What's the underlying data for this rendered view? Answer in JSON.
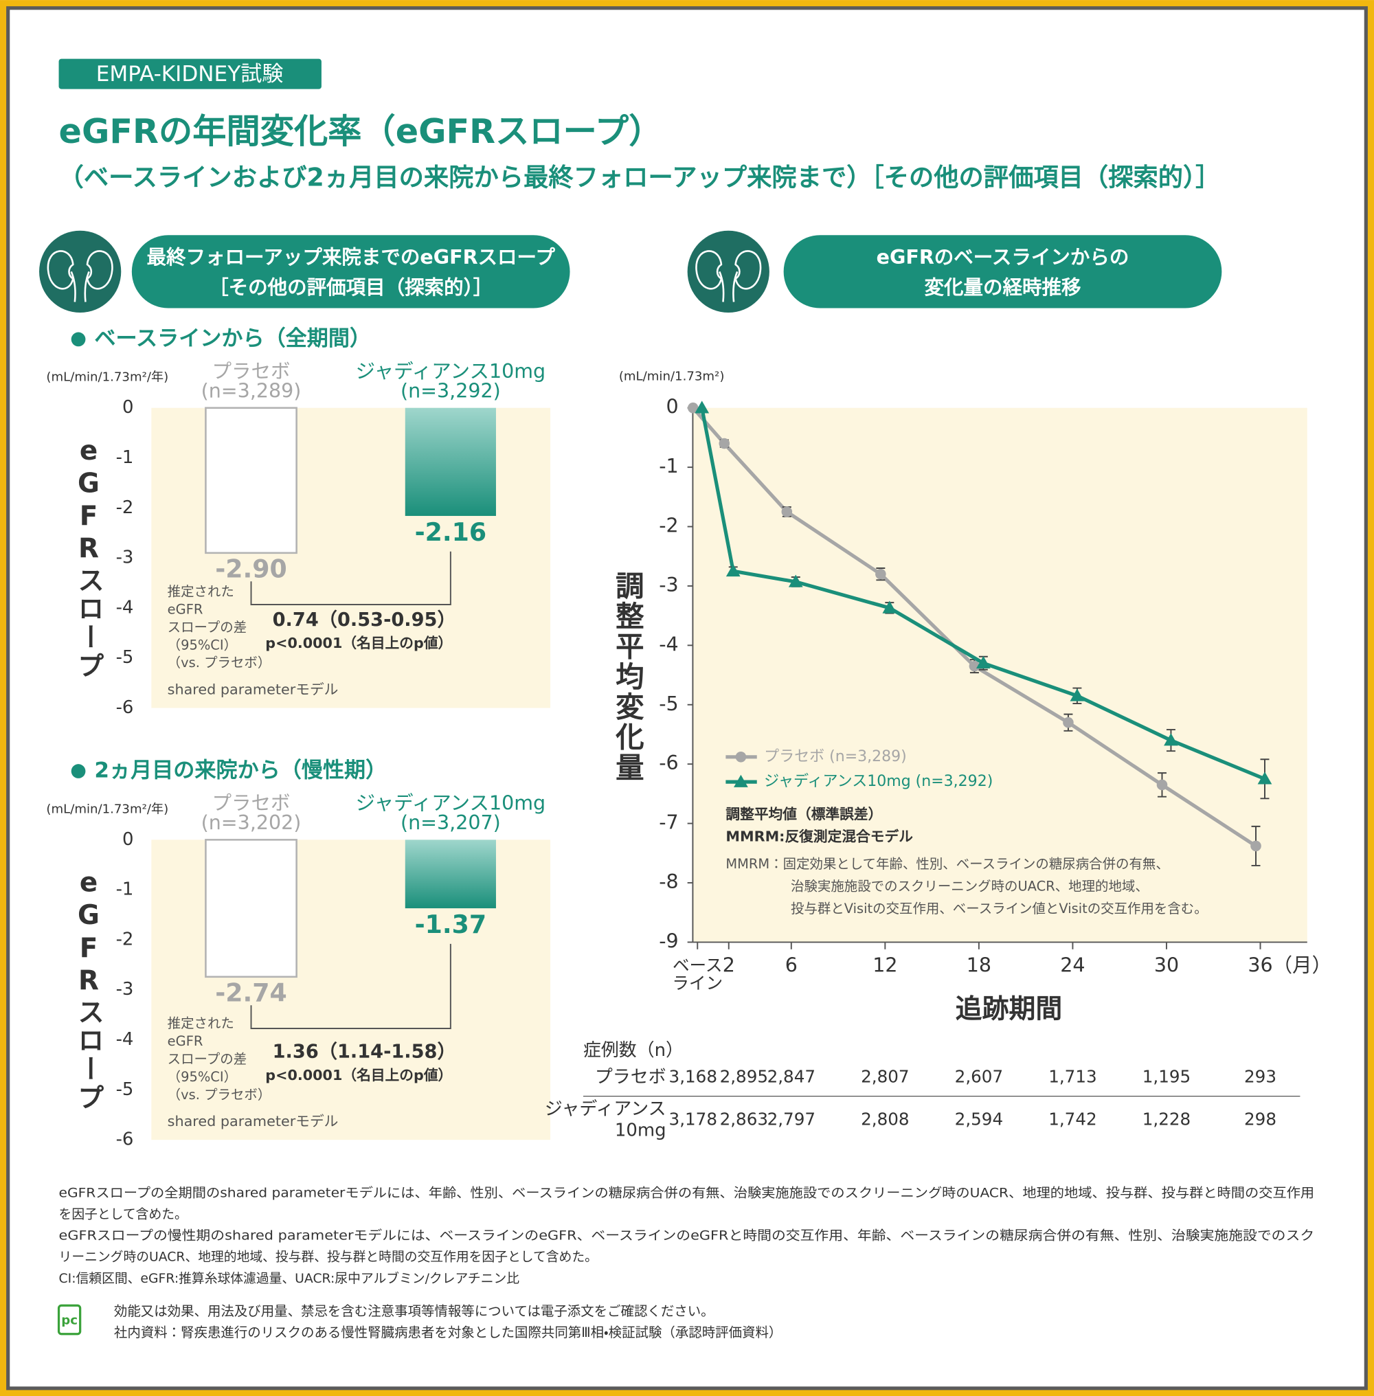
{
  "badge": "EMPA-KIDNEY試験",
  "title": "eGFRの年間変化率（eGFRスロープ）",
  "subtitle": "（ベースラインおよび2ヵ月目の来院から最終フォローアップ来院まで）［その他の評価項目（探索的）］",
  "panels": [
    {
      "lines": [
        "最終フォローアップ来院までのeGFRスロープ",
        "［その他の評価項目（探索的）］"
      ]
    },
    {
      "lines": [
        "eGFRのベースラインからの",
        "変化量の経時推移"
      ]
    }
  ],
  "chart_data": [
    {
      "type": "bar",
      "section": "ベースラインから（全期間）",
      "unit": "(mL/min/1.73m²/年)",
      "y_label": "eGFRスロープ",
      "categories": [
        "プラセボ",
        "ジャディアンス10mg"
      ],
      "n_labels": [
        "(n=3,289)",
        "(n=3,292)"
      ],
      "values": [
        -2.9,
        -2.16
      ],
      "value_labels": [
        "-2.90",
        "-2.16"
      ],
      "colors": [
        "#ffffff",
        "#1a8f7a"
      ],
      "label_colors": [
        "#a6a6a6",
        "#1a8f7a"
      ],
      "ylim": [
        -6,
        0
      ],
      "yticks": [
        0,
        -1,
        -2,
        -3,
        -4,
        -5,
        -6
      ],
      "difference_label": [
        "推定された",
        "eGFR",
        "スロープの差",
        "（95%CI）",
        "（vs. プラセボ）"
      ],
      "difference": "0.74（0.53-0.95）",
      "p_value": "p<0.0001（名目上のp値）",
      "model": "shared parameterモデル"
    },
    {
      "type": "bar",
      "section": "2ヵ月目の来院から（慢性期）",
      "unit": "(mL/min/1.73m²/年)",
      "y_label": "eGFRスロープ",
      "categories": [
        "プラセボ",
        "ジャディアンス10mg"
      ],
      "n_labels": [
        "(n=3,202)",
        "(n=3,207)"
      ],
      "values": [
        -2.74,
        -1.37
      ],
      "value_labels": [
        "-2.74",
        "-1.37"
      ],
      "colors": [
        "#ffffff",
        "#1a8f7a"
      ],
      "label_colors": [
        "#a6a6a6",
        "#1a8f7a"
      ],
      "ylim": [
        -6,
        0
      ],
      "yticks": [
        0,
        -1,
        -2,
        -3,
        -4,
        -5,
        -6
      ],
      "difference_label": [
        "推定された",
        "eGFR",
        "スロープの差",
        "（95%CI）",
        "（vs. プラセボ）"
      ],
      "difference": "1.36（1.14-1.58）",
      "p_value": "p<0.0001（名目上のp値）",
      "model": "shared parameterモデル"
    },
    {
      "type": "line",
      "unit": "(mL/min/1.73m²)",
      "y_label": "調整平均変化量",
      "x_label": "追跡期間",
      "x_unit": "（月）",
      "x": [
        0,
        2,
        6,
        12,
        18,
        24,
        30,
        36
      ],
      "xlim": [
        -0.3,
        39
      ],
      "xticks": [
        {
          "value": 0,
          "label": "ベース\nライン"
        },
        2,
        6,
        12,
        18,
        24,
        30,
        36
      ],
      "ylim": [
        -9,
        0
      ],
      "yticks": [
        0,
        -1,
        -2,
        -3,
        -4,
        -5,
        -6,
        -7,
        -8,
        -9
      ],
      "series": [
        {
          "name": "プラセボ (n=3,289)",
          "color": "#a6a6a6",
          "marker": "circle",
          "values": [
            0,
            -0.6,
            -1.75,
            -2.8,
            -4.35,
            -5.3,
            -6.35,
            -7.38
          ],
          "errors": [
            null,
            0.06,
            0.08,
            0.1,
            0.11,
            0.14,
            0.2,
            0.33
          ]
        },
        {
          "name": "ジャディアンス10mg (n=3,292)",
          "color": "#1a8f7a",
          "marker": "triangle",
          "values": [
            0,
            -2.75,
            -2.93,
            -3.37,
            -4.3,
            -4.85,
            -5.6,
            -6.25
          ],
          "errors": [
            null,
            0.07,
            0.08,
            0.09,
            0.11,
            0.13,
            0.18,
            0.33
          ]
        }
      ],
      "notes_bold": [
        "調整平均値（標準誤差）",
        "MMRM:反復測定混合モデル"
      ],
      "notes": [
        "MMRM：固定効果として年齢、性別、ベースラインの糖尿病合併の有無、",
        "治験実施施設でのスクリーニング時のUACR、地理的地域、",
        "投与群とVisitの交互作用、ベースライン値とVisitの交互作用を含む。"
      ]
    }
  ],
  "case_table": {
    "title": "症例数（n）",
    "rows": [
      {
        "name": [
          "プラセボ"
        ],
        "counts": [
          "3,168",
          "2,895",
          "2,847",
          "2,807",
          "2,607",
          "1,713",
          "1,195",
          "293"
        ]
      },
      {
        "name": [
          "ジャディアンス",
          "10mg"
        ],
        "counts": [
          "3,178",
          "2,863",
          "2,797",
          "2,808",
          "2,594",
          "1,742",
          "1,228",
          "298"
        ]
      }
    ]
  },
  "footnotes": [
    "eGFRスロープの全期間のshared parameterモデルには、年齢、性別、ベースラインの糖尿病合併の有無、治験実施施設でのスクリーニング時のUACR、地理的地域、投与群、投与群と時間の交互作用",
    "を因子として含めた。",
    "eGFRスロープの慢性期のshared parameterモデルには、ベースラインのeGFR、ベースラインのeGFRと時間の交互作用、年齢、ベースラインの糖尿病合併の有無、性別、治験実施施設でのスク",
    "リーニング時のUACR、地理的地域、投与群、投与群と時間の交互作用を因子として含めた。",
    "CI:信頼区間、eGFR:推算糸球体濾過量、UACR:尿中アルブミン/クレアチニン比"
  ],
  "footer_icon": "pc",
  "footer": [
    "効能又は効果、用法及び用量、禁忌を含む注意事項等情報等については電子添文をご確認ください。",
    "社内資料：腎疾患進行のリスクのある慢性腎臓病患者を対象とした国際共同第Ⅲ相・検証試験（承認時評価資料）"
  ]
}
